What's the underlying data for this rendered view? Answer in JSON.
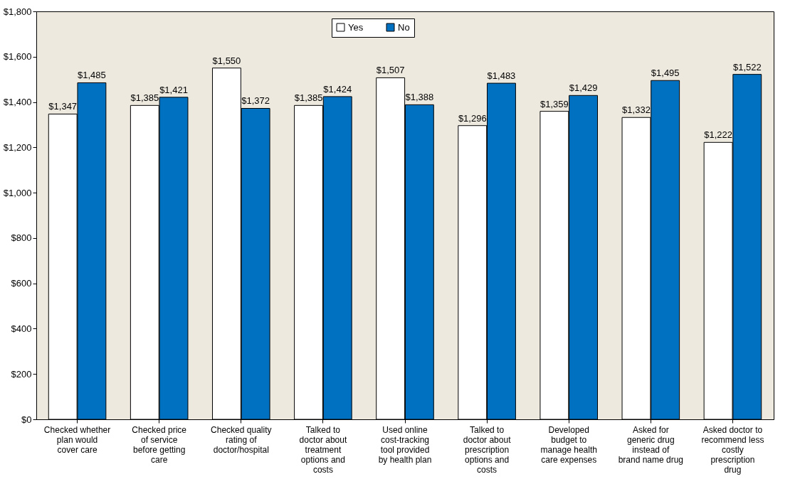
{
  "chart_data": {
    "type": "bar",
    "categories": [
      "Checked whether plan would cover care",
      "Checked price of service before getting care",
      "Checked quality rating of doctor/hospital",
      "Talked to doctor about treatment options and costs",
      "Used online cost-tracking tool provided by health plan",
      "Talked to doctor about prescription options and costs",
      "Developed budget to manage health care expenses",
      "Asked for generic drug instead of brand name drug",
      "Asked doctor to recommend less costly prescription drug"
    ],
    "series": [
      {
        "name": "Yes",
        "color": "#ffffff",
        "values": [
          1347,
          1385,
          1550,
          1385,
          1507,
          1296,
          1359,
          1332,
          1222
        ],
        "value_labels": [
          "$1,347",
          "$1,385",
          "$1,550",
          "$1,385",
          "$1,507",
          "$1,296",
          "$1,359",
          "$1,332",
          "$1,222"
        ]
      },
      {
        "name": "No",
        "color": "#0070c0",
        "values": [
          1485,
          1421,
          1372,
          1424,
          1388,
          1483,
          1429,
          1495,
          1522
        ],
        "value_labels": [
          "$1,485",
          "$1,421",
          "$1,372",
          "$1,424",
          "$1,388",
          "$1,483",
          "$1,429",
          "$1,495",
          "$1,522"
        ]
      }
    ],
    "ylim": [
      0,
      1800
    ],
    "yticks": [
      {
        "value": 0,
        "label": "$0"
      },
      {
        "value": 200,
        "label": "$200"
      },
      {
        "value": 400,
        "label": "$400"
      },
      {
        "value": 600,
        "label": "$600"
      },
      {
        "value": 800,
        "label": "$800"
      },
      {
        "value": 1000,
        "label": "$1,000"
      },
      {
        "value": 1200,
        "label": "$1,200"
      },
      {
        "value": 1400,
        "label": "$1,400"
      },
      {
        "value": 1600,
        "label": "$1,600"
      },
      {
        "value": 1800,
        "label": "$1,800"
      }
    ],
    "legend": "top"
  }
}
